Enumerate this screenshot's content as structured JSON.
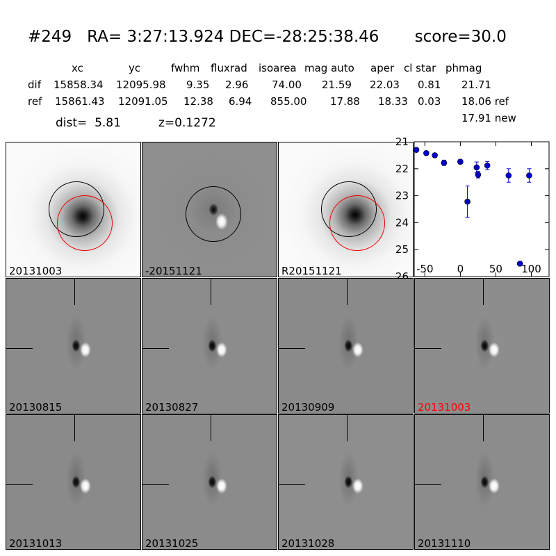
{
  "header": {
    "title": "#249   RA= 3:27:13.924 DEC=-28:25:38.46       score=30.0",
    "columns": [
      "xc",
      "yc",
      "fwhm",
      "fluxrad",
      "isoarea",
      "mag auto",
      "aper",
      "cl star",
      "phmag"
    ],
    "rows": [
      {
        "label": "dif",
        "values": [
          "15858.34",
          "12095.98",
          "9.35",
          "2.96",
          "74.00",
          "21.59",
          "22.03",
          "0.81",
          "21.71"
        ]
      },
      {
        "label": "ref",
        "values": [
          "15861.43",
          "12091.05",
          "12.38",
          "6.94",
          "855.00",
          "17.88",
          "18.33",
          "0.03",
          "18.06 ref"
        ]
      }
    ],
    "extra_phmag": "17.91 new",
    "dist_label": "dist=  5.81",
    "z_label": "z=0.1272"
  },
  "top_panels": [
    {
      "label": "20131003",
      "kind": "ref-galaxy",
      "label_color": "#000000"
    },
    {
      "label": "-20151121",
      "kind": "dif",
      "label_color": "#000000"
    },
    {
      "label": "R20151121",
      "kind": "ref-galaxy",
      "label_color": "#000000"
    }
  ],
  "grid_panels": [
    {
      "label": "20130815",
      "label_color": "#000000"
    },
    {
      "label": "20130827",
      "label_color": "#000000"
    },
    {
      "label": "20130909",
      "label_color": "#000000"
    },
    {
      "label": "20131003",
      "label_color": "#ff0000"
    },
    {
      "label": "20131013",
      "label_color": "#000000"
    },
    {
      "label": "20131025",
      "label_color": "#000000"
    },
    {
      "label": "20131028",
      "label_color": "#000000"
    },
    {
      "label": "20131110",
      "label_color": "#000000"
    }
  ],
  "chart_data": {
    "type": "scatter",
    "title": "",
    "xlabel": "",
    "ylabel": "",
    "xlim": [
      -65,
      125
    ],
    "ylim": [
      26,
      21
    ],
    "y_inverted": true,
    "xticks": [
      -50,
      0,
      50,
      100
    ],
    "yticks": [
      21,
      22,
      23,
      24,
      25,
      26
    ],
    "marker_color": "#0000cc",
    "points": [
      {
        "x": -62,
        "y": 21.3,
        "err": 0.05
      },
      {
        "x": -48,
        "y": 21.42,
        "err": 0.05
      },
      {
        "x": -36,
        "y": 21.5,
        "err": 0.06
      },
      {
        "x": -23,
        "y": 21.78,
        "err": 0.1
      },
      {
        "x": 0,
        "y": 21.74,
        "err": 0.08
      },
      {
        "x": 10,
        "y": 23.22,
        "err": 0.58
      },
      {
        "x": 23,
        "y": 21.95,
        "err": 0.2
      },
      {
        "x": 25,
        "y": 22.22,
        "err": 0.12
      },
      {
        "x": 38,
        "y": 21.88,
        "err": 0.15
      },
      {
        "x": 68,
        "y": 22.25,
        "err": 0.25
      },
      {
        "x": 84,
        "y": 25.52,
        "err": 0.08
      },
      {
        "x": 97,
        "y": 22.25,
        "err": 0.25
      }
    ]
  }
}
